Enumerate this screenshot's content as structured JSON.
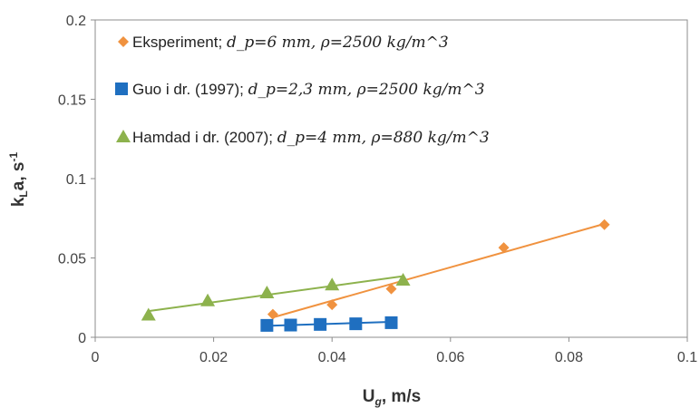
{
  "chart_data": {
    "type": "scatter",
    "xlabel": "U",
    "xlabel_sub": "g",
    "xlabel_unit": ", m/s",
    "ylabel": "k",
    "ylabel_sub": "L",
    "ylabel_unit": "a, s",
    "ylabel_sup": "-1",
    "xlim": [
      0,
      0.1
    ],
    "ylim": [
      0,
      0.2
    ],
    "xticks": [
      "0",
      "0.02",
      "0.04",
      "0.06",
      "0.08",
      "0.1"
    ],
    "yticks": [
      "0",
      "0.05",
      "0.1",
      "0.15",
      "0.2"
    ],
    "grid": false,
    "legend_position": "top-left (inside plot)",
    "series": [
      {
        "name": "Eksperiment;",
        "name_math": "d_p=6 mm, ρ=2500 kg/m^3",
        "marker": "diamond",
        "color": "#F0923F",
        "x": [
          0.03,
          0.04,
          0.05,
          0.069,
          0.086
        ],
        "y": [
          0.0145,
          0.0205,
          0.0305,
          0.0565,
          0.071
        ],
        "trendline": {
          "x": [
            0.03,
            0.086
          ],
          "y": [
            0.0125,
            0.0715
          ]
        }
      },
      {
        "name": "Guo i dr. (1997);",
        "name_math": "d_p=2,3 mm, ρ=2500 kg/m^3",
        "marker": "square",
        "color": "#1F6FC0",
        "x": [
          0.029,
          0.033,
          0.038,
          0.044,
          0.05
        ],
        "y": [
          0.0075,
          0.0077,
          0.0081,
          0.0085,
          0.0092
        ],
        "trendline": {
          "x": [
            0.029,
            0.05
          ],
          "y": [
            0.0072,
            0.0097
          ]
        }
      },
      {
        "name": "Hamdad i dr. (2007);",
        "name_math": "d_p=4 mm, ρ=880 kg/m^3",
        "marker": "triangle",
        "color": "#8DB24D",
        "x": [
          0.009,
          0.019,
          0.029,
          0.04,
          0.052
        ],
        "y": [
          0.014,
          0.023,
          0.028,
          0.033,
          0.036
        ],
        "trendline": {
          "x": [
            0.009,
            0.052
          ],
          "y": [
            0.0165,
            0.0385
          ]
        }
      }
    ]
  }
}
